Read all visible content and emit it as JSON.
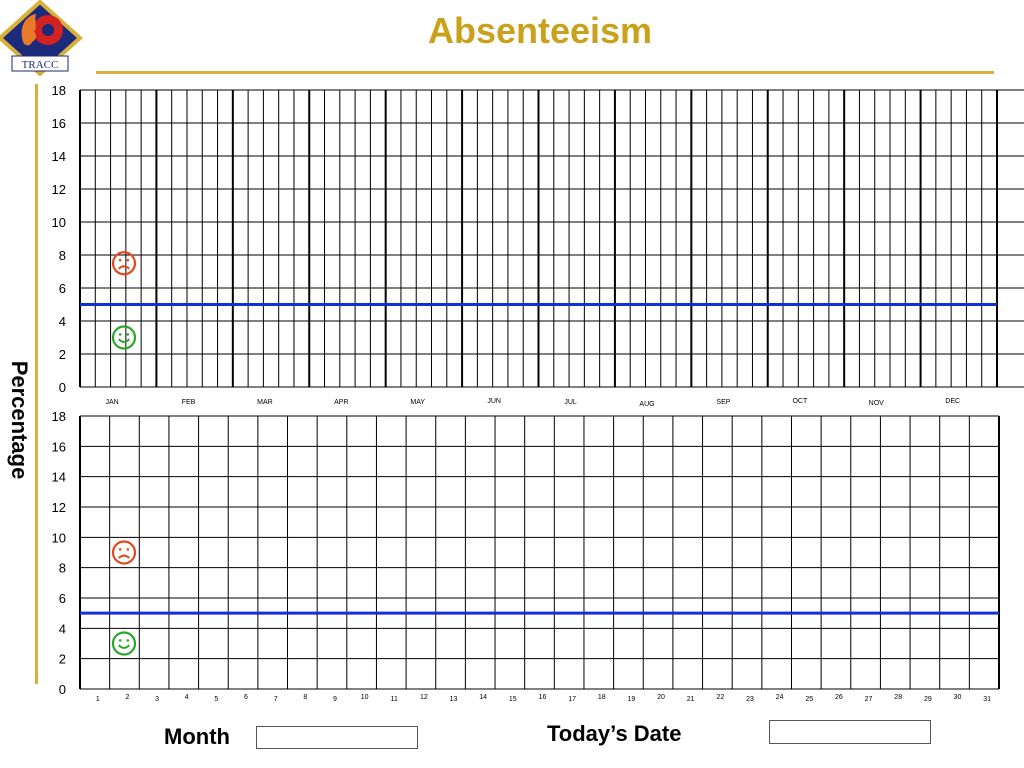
{
  "header": {
    "title": "Absenteeism",
    "logo_text": "TRACC"
  },
  "colors": {
    "title": "#c9a11a",
    "rule": "#d9b13a",
    "grid": "#000000",
    "target_line": "#1330d6",
    "bad": "#e5471e",
    "good": "#2aa62a",
    "logo_bg": "#1b2a7a",
    "logo_border": "#d9b13a",
    "logo_gear": "#d22222",
    "logo_face": "#e87a2a"
  },
  "icons": {
    "sad": "sad-face-icon",
    "happy": "happy-face-icon"
  },
  "y_axis_label": "Percentage",
  "chart_data": [
    {
      "type": "line",
      "panel": "monthly",
      "categories": [
        "JAN",
        "FEB",
        "MAR",
        "APR",
        "MAY",
        "JUN",
        "JUL",
        "AUG",
        "SEP",
        "OCT",
        "NOV",
        "DEC"
      ],
      "subdivisions_per_category": 5,
      "y_ticks": [
        0,
        2,
        4,
        6,
        8,
        10,
        12,
        14,
        16,
        18
      ],
      "ylim": [
        0,
        18
      ],
      "target": 5,
      "series": [],
      "grid": true,
      "sad_marker_value": 7.5,
      "happy_marker_value": 3
    },
    {
      "type": "line",
      "panel": "daily",
      "categories": [
        "1",
        "2",
        "3",
        "4",
        "5",
        "6",
        "7",
        "8",
        "9",
        "10",
        "11",
        "12",
        "13",
        "14",
        "15",
        "16",
        "17",
        "18",
        "19",
        "20",
        "21",
        "22",
        "23",
        "24",
        "25",
        "26",
        "27",
        "28",
        "29",
        "30",
        "31"
      ],
      "y_ticks": [
        0,
        2,
        4,
        6,
        8,
        10,
        12,
        14,
        16,
        18
      ],
      "ylim": [
        0,
        18
      ],
      "target": 5,
      "series": [],
      "grid": true,
      "sad_marker_value": 9,
      "happy_marker_value": 3
    }
  ],
  "form": {
    "month_label": "Month",
    "month_value": "",
    "date_label": "Today’s Date",
    "date_value": ""
  }
}
